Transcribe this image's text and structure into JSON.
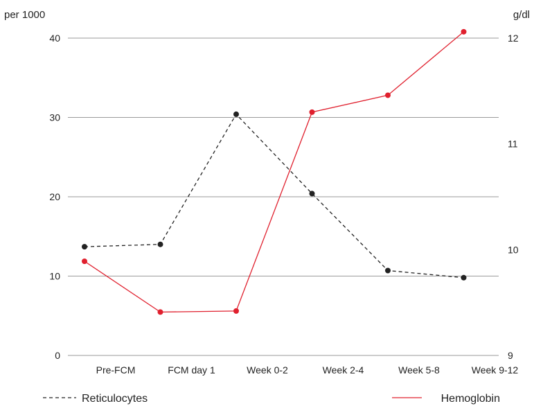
{
  "chart_data": {
    "type": "line",
    "categories": [
      "Pre-FCM",
      "FCM day 1",
      "Week 0-2",
      "Week 2-4",
      "Week 5-8",
      "Week 9-12"
    ],
    "left_axis": {
      "unit_label": "per 1000",
      "ticks": [
        "0",
        "10",
        "20",
        "30",
        "40"
      ],
      "ylim": [
        0,
        40
      ]
    },
    "right_axis": {
      "unit_label": "g/dl",
      "ticks": [
        "9",
        "10",
        "11",
        "12"
      ],
      "ylim": [
        9,
        12
      ]
    },
    "grid": "horizontal",
    "series": [
      {
        "name": "Reticulocytes",
        "axis": "left",
        "style": "dashed",
        "color": "#222222",
        "values": [
          13.7,
          14.0,
          30.4,
          20.4,
          10.7,
          9.8
        ]
      },
      {
        "name": "Hemoglobin",
        "axis": "right",
        "style": "solid",
        "color": "#e0202e",
        "values": [
          9.89,
          9.41,
          9.42,
          11.3,
          11.46,
          12.06
        ]
      }
    ],
    "legend_placement": "bottom"
  }
}
